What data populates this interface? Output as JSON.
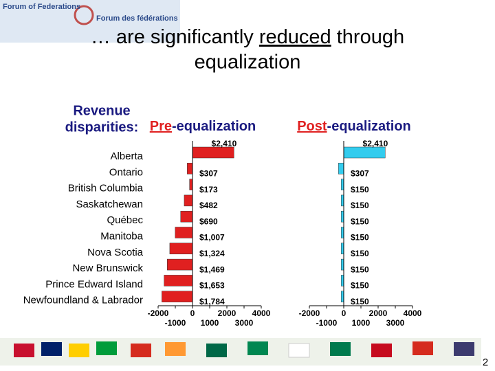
{
  "logo": {
    "line1": "Forum of Federations",
    "line2": "Forum des fédérations"
  },
  "title": {
    "before": "… are significantly ",
    "emph": "reduced",
    "after": " through",
    "line2": "equalization"
  },
  "heading": [
    "Revenue",
    "disparities:"
  ],
  "slide_number": "2",
  "chart_data": [
    {
      "type": "bar",
      "orientation": "horizontal",
      "title_highlight": "Pre",
      "title_rest": "-equalization",
      "categories": [
        "Alberta",
        "Ontario",
        "British Columbia",
        "Saskatchewan",
        "Québec",
        "Manitoba",
        "Nova Scotia",
        "New Brunswick",
        "Prince Edward Island",
        "Newfoundland & Labrador"
      ],
      "values": [
        2410,
        -307,
        -173,
        -482,
        -690,
        -1007,
        -1324,
        -1469,
        -1653,
        -1784
      ],
      "value_labels": [
        "$2,410",
        "$307",
        "$173",
        "$482",
        "$690",
        "$1,007",
        "$1,324",
        "$1,469",
        "$1,653",
        "$1,784"
      ],
      "color": "#e02020",
      "xlim": [
        -2000,
        4000
      ],
      "xticks": [
        -2000,
        -1000,
        0,
        1000,
        2000,
        3000,
        4000
      ]
    },
    {
      "type": "bar",
      "orientation": "horizontal",
      "title_highlight": "Post",
      "title_rest": "-equalization",
      "values": [
        2410,
        -307,
        -150,
        -150,
        -150,
        -150,
        -150,
        -150,
        -150,
        -150
      ],
      "value_labels": [
        "$2,410",
        "$307",
        "$150",
        "$150",
        "$150",
        "$150",
        "$150",
        "$150",
        "$150",
        "$150"
      ],
      "color": "#33ccee",
      "xlim": [
        -2000,
        4000
      ],
      "xticks": [
        -2000,
        -1000,
        0,
        1000,
        2000,
        3000,
        4000
      ]
    }
  ]
}
